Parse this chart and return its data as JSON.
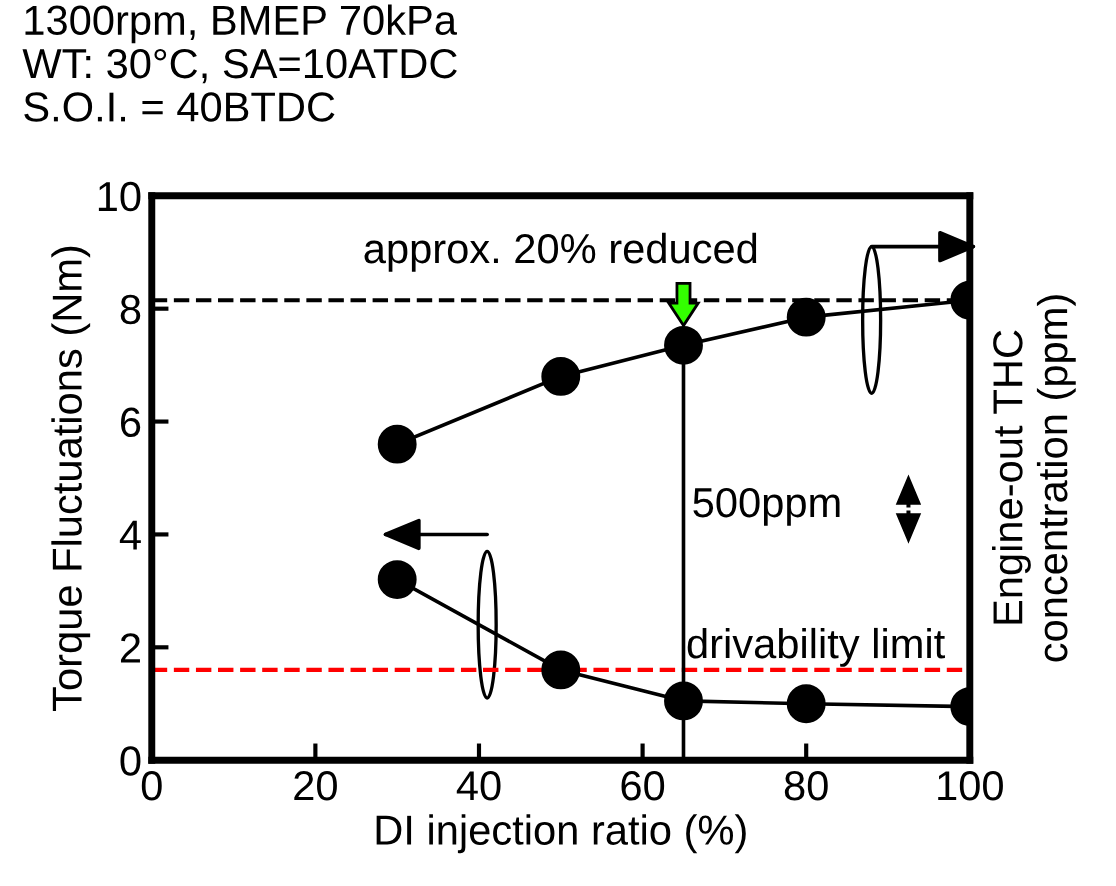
{
  "chart_data": {
    "type": "line",
    "title": "1300rpm, BMEP 70kPa\nWT: 30°C, SA=10ATDC\nS.O.I. = 40BTDC",
    "xlabel": "DI injection ratio (%)",
    "ylabel": "Torque Fluctuations (Nm)",
    "y2label": "Engine-out THC\nconcentration (ppm)",
    "x": [
      30,
      50,
      65,
      80,
      100
    ],
    "series": [
      {
        "color": "#000000",
        "values": [
          5.6,
          6.8,
          7.35,
          7.85,
          8.15
        ]
      },
      {
        "color": "#000000",
        "values": [
          3.2,
          1.6,
          1.05,
          1.0,
          0.95
        ]
      }
    ],
    "marker": "circle",
    "line_style": "solid",
    "xlim": [
      0,
      100
    ],
    "xticks": [
      0,
      20,
      40,
      60,
      80,
      100
    ],
    "ylim": [
      0,
      10
    ],
    "yticks": [
      0,
      2,
      4,
      6,
      8,
      10
    ],
    "grid": false,
    "ref_lines": [
      {
        "axis": "y",
        "value": 8.15,
        "label": "approx. 20% reduced",
        "color": "#000000",
        "line_style": "dashed"
      },
      {
        "axis": "y",
        "value": 1.6,
        "label": "drivability limit",
        "color": "#ff0000",
        "line_style": "dashed"
      },
      {
        "axis": "x",
        "value": 65,
        "color": "#000000",
        "line_style": "solid"
      }
    ],
    "annotations": [
      "500ppm"
    ]
  }
}
